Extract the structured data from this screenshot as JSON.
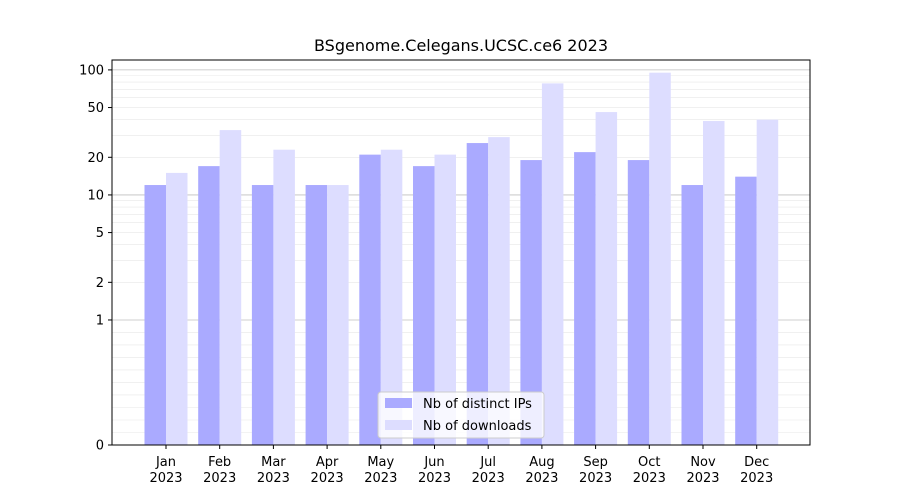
{
  "chart_data": {
    "type": "bar",
    "title": "BSgenome.Celegans.UCSC.ce6 2023",
    "xlabel": "",
    "ylabel": "",
    "yscale": "symlog",
    "ylim": [
      0,
      120
    ],
    "yticks": [
      0,
      1,
      2,
      5,
      10,
      20,
      50,
      100
    ],
    "ytick_labels": [
      "0",
      "1",
      "2",
      "5",
      "10",
      "20",
      "50",
      "100"
    ],
    "categories": [
      "Jan",
      "Feb",
      "Mar",
      "Apr",
      "May",
      "Jun",
      "Jul",
      "Aug",
      "Sep",
      "Oct",
      "Nov",
      "Dec"
    ],
    "category_year": "2023",
    "grid": "horizontal",
    "legend_position": "lower center",
    "series": [
      {
        "name": "Nb of distinct IPs",
        "color": "#aaaaff",
        "values": [
          12,
          17,
          12,
          12,
          21,
          17,
          26,
          19,
          22,
          19,
          12,
          14
        ]
      },
      {
        "name": "Nb of downloads",
        "color": "#ddddff",
        "values": [
          15,
          33,
          23,
          12,
          23,
          21,
          29,
          78,
          46,
          95,
          39,
          40
        ]
      }
    ]
  }
}
